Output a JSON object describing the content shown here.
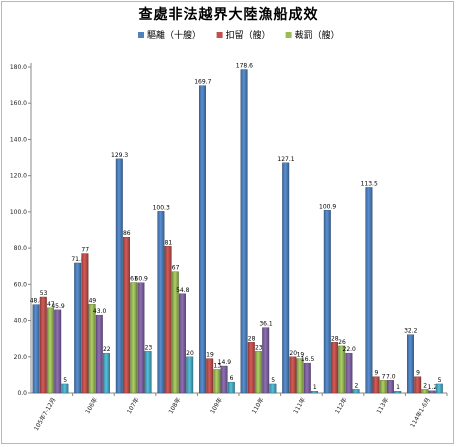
{
  "chart_data": {
    "type": "bar",
    "title": "查處非法越界大陸漁船成效",
    "categories": [
      "105年7-12月",
      "106年",
      "107年",
      "108年",
      "109年",
      "110年",
      "111年",
      "112年",
      "113年",
      "114年1-6月"
    ],
    "series": [
      {
        "name": "驅離（十艘）",
        "color": "#4f81bd",
        "values": [
          48.8,
          71.8,
          129.3,
          100.3,
          169.7,
          178.6,
          127.1,
          100.9,
          113.5,
          32.2
        ],
        "labels": [
          "48.8",
          "71.8",
          "129.3",
          "100.3",
          "169.7",
          "178.6",
          "127.1",
          "100.9",
          "113.5",
          "32.2"
        ]
      },
      {
        "name": "扣留（艘）",
        "color": "#c0504d",
        "values": [
          53,
          77,
          86,
          81,
          19,
          28,
          20,
          28,
          9,
          9
        ],
        "labels": [
          "53",
          "77",
          "86",
          "81",
          "19",
          "28",
          "20",
          "28",
          "9",
          "9"
        ]
      },
      {
        "name": "裁罰（艘）",
        "color": "#9bbb59",
        "values": [
          47,
          49,
          61,
          67,
          13,
          23,
          19,
          26,
          7,
          2
        ],
        "labels": [
          "47",
          "49",
          "61",
          "67",
          "13",
          "23",
          "19",
          "26",
          "7",
          "2"
        ]
      },
      {
        "name": "",
        "color": "#8064a2",
        "values": [
          45.9,
          43.0,
          60.9,
          54.8,
          14.9,
          36.1,
          16.5,
          22.0,
          7.0,
          1.2
        ],
        "labels": [
          "45.9",
          "43.0",
          "60.9",
          "54.8",
          "14.9",
          "36.1",
          "16.5",
          "22.0",
          "7.0",
          "1.2"
        ]
      },
      {
        "name": "",
        "color": "#4bacc6",
        "values": [
          5,
          22,
          23,
          20,
          6,
          5,
          1,
          2,
          1,
          5
        ],
        "labels": [
          "5",
          "22",
          "23",
          "20",
          "6",
          "5",
          "1",
          "2",
          "1",
          "5"
        ]
      }
    ],
    "ylim": [
      0,
      180
    ],
    "yticks": [
      "0.0",
      "20.0",
      "40.0",
      "60.0",
      "80.0",
      "100.0",
      "120.0",
      "140.0",
      "160.0",
      "180.0"
    ],
    "grid": false,
    "legend": "top"
  }
}
